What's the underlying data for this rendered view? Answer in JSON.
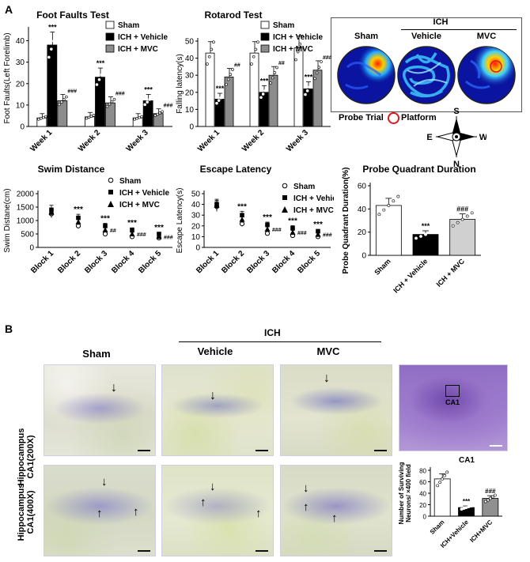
{
  "panelA": {
    "letter": "A"
  },
  "panelB": {
    "letter": "B"
  },
  "foot": {
    "title": "Foot Faults Test",
    "ylabel": "Foot Faults(Left Forelimb)",
    "yticks": [
      "0",
      "10",
      "20",
      "30",
      "40"
    ],
    "groups": [
      "Week 1",
      "Week 2",
      "Week 3"
    ],
    "sig_ich": [
      "***",
      "***",
      "***"
    ],
    "sig_mvc": [
      "###",
      "###",
      "###"
    ]
  },
  "rotarod": {
    "title": "Rotarod Test",
    "ylabel": "Falling latency(s)",
    "yticks": [
      "0",
      "10",
      "20",
      "30",
      "40",
      "50"
    ],
    "groups": [
      "Week 1",
      "Week 2",
      "Week 3"
    ],
    "sig_ich": [
      "***",
      "***",
      "***"
    ],
    "sig_mvc": [
      "##",
      "##",
      "###"
    ]
  },
  "legend_bars": [
    "Sham",
    "ICH + Vehicle",
    "ICH + MVC"
  ],
  "heatmaps": {
    "ich_label": "ICH",
    "labels": [
      "Sham",
      "Vehicle",
      "MVC"
    ],
    "probe_trial": "Probe Trial",
    "platform": "Platform",
    "compass": {
      "n": "N",
      "s": "S",
      "e": "E",
      "w": "W"
    }
  },
  "swim": {
    "title": "Swim Distance",
    "ylabel": "Swim Distane(cm)",
    "yticks": [
      "0",
      "500",
      "1000",
      "1500",
      "2000"
    ],
    "groups": [
      "Block 1",
      "Block 2",
      "Block 3",
      "Block 4",
      "Block 5"
    ],
    "sig_ich": [
      "",
      "***",
      "***",
      "***",
      "***"
    ],
    "sig_mvc": [
      "",
      "",
      "##",
      "###",
      "###"
    ]
  },
  "escape": {
    "title": "Escape Latency",
    "ylabel": "Escape Latency(s)",
    "yticks": [
      "0",
      "10",
      "20",
      "30",
      "40",
      "50"
    ],
    "groups": [
      "Block 1",
      "Block 2",
      "Block 3",
      "Block 4",
      "Block 5"
    ],
    "sig_ich": [
      "",
      "***",
      "***",
      "***",
      "***"
    ],
    "sig_mvc": [
      "",
      "",
      "###",
      "###",
      "###"
    ]
  },
  "legend_points": [
    "Sham",
    "ICH + Vehicle",
    "ICH + MVC"
  ],
  "probe": {
    "title": "Probe Quadrant Duration",
    "ylabel": "Probe Quadrant Duration(%)",
    "yticks": [
      "0",
      "20",
      "40",
      "60"
    ],
    "categories": [
      "Sham",
      "ICH + Vehicle",
      "ICH + MVC"
    ],
    "sig": [
      "",
      "***",
      "###"
    ]
  },
  "ca1": {
    "title": "CA1",
    "ylabel": "Number of Surviving Neurons/ ×400 field",
    "yticks": [
      "0",
      "20",
      "40",
      "60",
      "80"
    ],
    "categories": [
      "Sham",
      "ICH+Vehicle",
      "ICH+MVC"
    ],
    "sig": [
      "",
      "***",
      "###"
    ]
  },
  "histology": {
    "ich_label": "ICH",
    "col_labels": [
      "Sham",
      "Vehicle",
      "MVC"
    ],
    "row1_label": "Hippocampus CA1(200X)",
    "row2_label": "Hippocampus CA1(400X)",
    "overview_label": "CA1"
  },
  "colors": {
    "sham": "#ffffff",
    "vehicle": "#000000",
    "mvc": "#8c8c8c",
    "mvc_probe": "#d0d0d0",
    "ca1_mvc": "#909090",
    "platform": "#e0141e"
  },
  "chart_data": [
    {
      "type": "bar",
      "title": "Foot Faults Test",
      "ylabel": "Foot Faults(Left Forelimb)",
      "categories": [
        "Week 1",
        "Week 2",
        "Week 3"
      ],
      "ylim": [
        0,
        45
      ],
      "series": [
        {
          "name": "Sham",
          "values": [
            4,
            4.5,
            4
          ]
        },
        {
          "name": "ICH + Vehicle",
          "values": [
            38,
            23,
            12
          ]
        },
        {
          "name": "ICH + MVC",
          "values": [
            12,
            11,
            6
          ]
        }
      ]
    },
    {
      "type": "bar",
      "title": "Rotarod Test",
      "ylabel": "Falling latency(s)",
      "categories": [
        "Week 1",
        "Week 2",
        "Week 3"
      ],
      "ylim": [
        0,
        50
      ],
      "series": [
        {
          "name": "Sham",
          "values": [
            43,
            43,
            46
          ]
        },
        {
          "name": "ICH + Vehicle",
          "values": [
            16,
            20,
            22
          ]
        },
        {
          "name": "ICH + MVC",
          "values": [
            29,
            30,
            33
          ]
        }
      ]
    },
    {
      "type": "scatter",
      "title": "Swim Distance",
      "ylabel": "Swim Distane(cm)",
      "categories": [
        "Block 1",
        "Block 2",
        "Block 3",
        "Block 4",
        "Block 5"
      ],
      "ylim": [
        0,
        2000
      ],
      "series": [
        {
          "name": "Sham",
          "values": [
            1250,
            800,
            500,
            400,
            350
          ]
        },
        {
          "name": "ICH + Vehicle",
          "values": [
            1400,
            1100,
            800,
            650,
            500
          ]
        },
        {
          "name": "ICH + MVC",
          "values": [
            1300,
            950,
            650,
            500,
            400
          ]
        }
      ]
    },
    {
      "type": "scatter",
      "title": "Escape Latency",
      "ylabel": "Escape Latency(s)",
      "categories": [
        "Block 1",
        "Block 2",
        "Block 3",
        "Block 4",
        "Block 5"
      ],
      "ylim": [
        0,
        50
      ],
      "series": [
        {
          "name": "Sham",
          "values": [
            38,
            22,
            13,
            11,
            10
          ]
        },
        {
          "name": "ICH + Vehicle",
          "values": [
            40,
            30,
            21,
            18,
            15
          ]
        },
        {
          "name": "ICH + MVC",
          "values": [
            39,
            26,
            17,
            14,
            12
          ]
        }
      ]
    },
    {
      "type": "bar",
      "title": "Probe Quadrant Duration",
      "ylabel": "Probe Quadrant Duration(%)",
      "categories": [
        "Sham",
        "ICH + Vehicle",
        "ICH + MVC"
      ],
      "ylim": [
        0,
        60
      ],
      "series": [
        {
          "name": "",
          "values": [
            43,
            18,
            31
          ]
        }
      ]
    },
    {
      "type": "bar",
      "title": "CA1",
      "ylabel": "Number of Surviving Neurons/ ×400 field",
      "categories": [
        "Sham",
        "ICH+Vehicle",
        "ICH+MVC"
      ],
      "ylim": [
        0,
        80
      ],
      "series": [
        {
          "name": "",
          "values": [
            65,
            15,
            31
          ]
        }
      ]
    }
  ]
}
